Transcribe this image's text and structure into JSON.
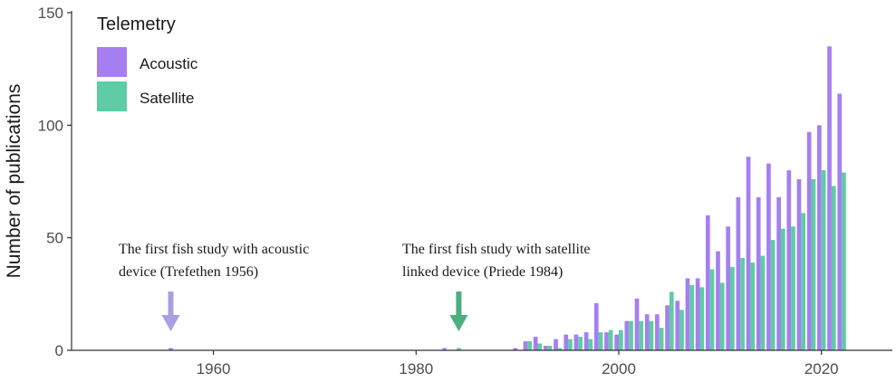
{
  "chart_data": {
    "type": "bar",
    "title": "",
    "xlabel": "",
    "ylabel": "Number of publications",
    "xlim": [
      1946,
      2027
    ],
    "ylim": [
      0,
      150
    ],
    "x_ticks": [
      1960,
      1980,
      2000,
      2020
    ],
    "y_ticks": [
      0,
      50,
      100,
      150
    ],
    "grid": false,
    "legend": {
      "title": "Telemetry",
      "placement": "top-left",
      "entries": [
        "Acoustic",
        "Satellite"
      ]
    },
    "colors": {
      "Acoustic": "#a57ff0",
      "Satellite": "#5ecca5"
    },
    "series": [
      {
        "name": "Acoustic",
        "points": [
          [
            1956,
            1
          ],
          [
            1983,
            1
          ],
          [
            1990,
            1
          ],
          [
            1991,
            4
          ],
          [
            1992,
            6
          ],
          [
            1993,
            2
          ],
          [
            1994,
            5
          ],
          [
            1995,
            7
          ],
          [
            1996,
            7
          ],
          [
            1997,
            8
          ],
          [
            1998,
            21
          ],
          [
            1999,
            8
          ],
          [
            2000,
            7
          ],
          [
            2001,
            13
          ],
          [
            2002,
            23
          ],
          [
            2003,
            16
          ],
          [
            2004,
            16
          ],
          [
            2005,
            20
          ],
          [
            2006,
            22
          ],
          [
            2007,
            32
          ],
          [
            2008,
            32
          ],
          [
            2009,
            60
          ],
          [
            2010,
            44
          ],
          [
            2011,
            55
          ],
          [
            2012,
            68
          ],
          [
            2013,
            86
          ],
          [
            2014,
            68
          ],
          [
            2015,
            83
          ],
          [
            2016,
            68
          ],
          [
            2017,
            80
          ],
          [
            2018,
            76
          ],
          [
            2019,
            97
          ],
          [
            2020,
            100
          ],
          [
            2021,
            135
          ],
          [
            2022,
            114
          ]
        ]
      },
      {
        "name": "Satellite",
        "points": [
          [
            1984,
            1
          ],
          [
            1991,
            4
          ],
          [
            1992,
            3
          ],
          [
            1993,
            2
          ],
          [
            1994,
            1
          ],
          [
            1995,
            5
          ],
          [
            1996,
            6
          ],
          [
            1997,
            5
          ],
          [
            1998,
            8
          ],
          [
            1999,
            9
          ],
          [
            2000,
            9
          ],
          [
            2001,
            13
          ],
          [
            2002,
            13
          ],
          [
            2003,
            13
          ],
          [
            2004,
            10
          ],
          [
            2005,
            26
          ],
          [
            2006,
            18
          ],
          [
            2007,
            29
          ],
          [
            2008,
            28
          ],
          [
            2009,
            36
          ],
          [
            2010,
            30
          ],
          [
            2011,
            37
          ],
          [
            2012,
            41
          ],
          [
            2013,
            39
          ],
          [
            2014,
            42
          ],
          [
            2015,
            49
          ],
          [
            2016,
            54
          ],
          [
            2017,
            55
          ],
          [
            2018,
            61
          ],
          [
            2019,
            76
          ],
          [
            2020,
            80
          ],
          [
            2021,
            73
          ],
          [
            2022,
            79
          ]
        ]
      }
    ],
    "annotations": [
      {
        "id": "acoustic",
        "text_lines": [
          "The first fish study with acoustic",
          "device (Trefethen 1956)"
        ],
        "x": 1956,
        "color": "#a99fe3"
      },
      {
        "id": "satellite",
        "text_lines": [
          "The first fish study with satellite",
          "linked device (Priede 1984)"
        ],
        "x": 1984,
        "color": "#4dae7e"
      }
    ]
  }
}
